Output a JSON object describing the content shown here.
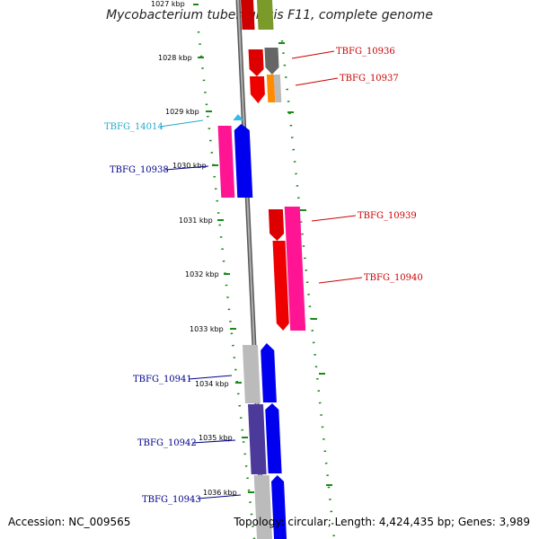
{
  "title": "Mycobacterium tuberculosis F11, complete genome",
  "footer": {
    "accession": "Accession: NC_009565",
    "topology": "Topology: circular; Length: 4,424,435 bp; Genes: 3,989"
  },
  "colors": {
    "label_red": "#cc0000",
    "label_blue": "#00008b",
    "label_cyan": "#22aacc",
    "dots": "#1a8a1a",
    "axis": "#808080"
  },
  "ticks": [
    "1027 kbp",
    "1028 kbp",
    "1029 kbp",
    "1030 kbp",
    "1031 kbp",
    "1032 kbp",
    "1033 kbp",
    "1034 kbp",
    "1035 kbp",
    "1036 kbp"
  ],
  "gene_labels": [
    "TBFG_10936",
    "TBFG_10937",
    "TBFG_14014",
    "TBFG_10938",
    "TBFG_10939",
    "TBFG_10940",
    "TBFG_10941",
    "TBFG_10942",
    "TBFG_10943"
  ]
}
